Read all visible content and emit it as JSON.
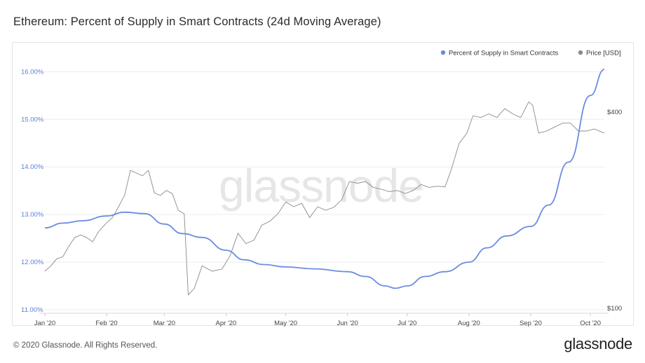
{
  "header": {
    "title": "Ethereum: Percent of Supply in Smart Contracts (24d Moving Average)"
  },
  "footer": {
    "copyright": "© 2020 Glassnode. All Rights Reserved.",
    "brand": "glassnode"
  },
  "watermark": "glassnode",
  "chart_data": {
    "type": "line",
    "title": "Ethereum: Percent of Supply in Smart Contracts (24d Moving Average)",
    "x_range": [
      "2020-01-01",
      "2020-10-08"
    ],
    "x_ticks": [
      "Jan '20",
      "Feb '20",
      "Mar '20",
      "Apr '20",
      "May '20",
      "Jun '20",
      "Jul '20",
      "Aug '20",
      "Sep '20",
      "Oct '20"
    ],
    "y_left": {
      "ticks": [
        "11.00%",
        "12.00%",
        "13.00%",
        "14.00%",
        "15.00%",
        "16.00%"
      ],
      "range": [
        11.0,
        16.3
      ],
      "scale": "linear",
      "color": "#5b7fd6"
    },
    "y_right": {
      "ticks": [
        "$100",
        "$400"
      ],
      "tick_values": [
        100,
        400
      ],
      "scale": "log",
      "color": "#444"
    },
    "grid": true,
    "legend_position": "top-right",
    "series": [
      {
        "name": "Percent of Supply in Smart Contracts",
        "color": "#6a8ce0",
        "axis": "left",
        "x": [
          "2020-01-01",
          "2020-01-10",
          "2020-01-20",
          "2020-02-01",
          "2020-02-10",
          "2020-02-20",
          "2020-03-01",
          "2020-03-10",
          "2020-03-20",
          "2020-04-01",
          "2020-04-10",
          "2020-04-20",
          "2020-05-01",
          "2020-05-15",
          "2020-06-01",
          "2020-06-10",
          "2020-06-20",
          "2020-06-25",
          "2020-07-01",
          "2020-07-10",
          "2020-07-20",
          "2020-08-01",
          "2020-08-10",
          "2020-08-20",
          "2020-09-01",
          "2020-09-10",
          "2020-09-20",
          "2020-10-01",
          "2020-10-08"
        ],
        "values": [
          12.72,
          12.82,
          12.87,
          12.97,
          13.05,
          13.02,
          12.8,
          12.6,
          12.52,
          12.25,
          12.05,
          11.95,
          11.9,
          11.86,
          11.8,
          11.7,
          11.5,
          11.45,
          11.5,
          11.7,
          11.8,
          12.0,
          12.3,
          12.55,
          12.75,
          13.2,
          14.1,
          15.5,
          16.05
        ]
      },
      {
        "name": "Price [USD]",
        "color": "#8a8a8a",
        "axis": "right",
        "x": [
          "2020-01-01",
          "2020-01-04",
          "2020-01-07",
          "2020-01-10",
          "2020-01-13",
          "2020-01-16",
          "2020-01-19",
          "2020-01-22",
          "2020-01-25",
          "2020-01-28",
          "2020-02-01",
          "2020-02-04",
          "2020-02-07",
          "2020-02-10",
          "2020-02-13",
          "2020-02-16",
          "2020-02-19",
          "2020-02-22",
          "2020-02-25",
          "2020-02-28",
          "2020-03-02",
          "2020-03-05",
          "2020-03-08",
          "2020-03-11",
          "2020-03-13",
          "2020-03-16",
          "2020-03-20",
          "2020-03-25",
          "2020-03-30",
          "2020-04-03",
          "2020-04-07",
          "2020-04-11",
          "2020-04-15",
          "2020-04-19",
          "2020-04-23",
          "2020-04-27",
          "2020-05-01",
          "2020-05-05",
          "2020-05-09",
          "2020-05-13",
          "2020-05-17",
          "2020-05-21",
          "2020-05-25",
          "2020-05-29",
          "2020-06-02",
          "2020-06-06",
          "2020-06-10",
          "2020-06-14",
          "2020-06-18",
          "2020-06-22",
          "2020-06-26",
          "2020-06-30",
          "2020-07-04",
          "2020-07-08",
          "2020-07-12",
          "2020-07-16",
          "2020-07-20",
          "2020-07-23",
          "2020-07-27",
          "2020-07-31",
          "2020-08-03",
          "2020-08-07",
          "2020-08-11",
          "2020-08-15",
          "2020-08-19",
          "2020-08-23",
          "2020-08-27",
          "2020-08-31",
          "2020-09-02",
          "2020-09-05",
          "2020-09-09",
          "2020-09-13",
          "2020-09-17",
          "2020-09-21",
          "2020-09-25",
          "2020-09-29",
          "2020-10-03",
          "2020-10-08"
        ],
        "values": [
          130,
          135,
          142,
          144,
          155,
          165,
          168,
          165,
          160,
          172,
          183,
          190,
          205,
          222,
          265,
          260,
          255,
          265,
          226,
          222,
          230,
          225,
          200,
          195,
          110,
          115,
          135,
          130,
          132,
          145,
          170,
          158,
          162,
          180,
          185,
          195,
          212,
          205,
          210,
          190,
          205,
          200,
          204,
          215,
          245,
          242,
          245,
          235,
          232,
          228,
          230,
          225,
          230,
          240,
          235,
          237,
          236,
          265,
          320,
          345,
          390,
          385,
          395,
          385,
          410,
          395,
          385,
          430,
          420,
          345,
          350,
          360,
          370,
          370,
          350,
          350,
          355,
          345
        ]
      }
    ]
  }
}
